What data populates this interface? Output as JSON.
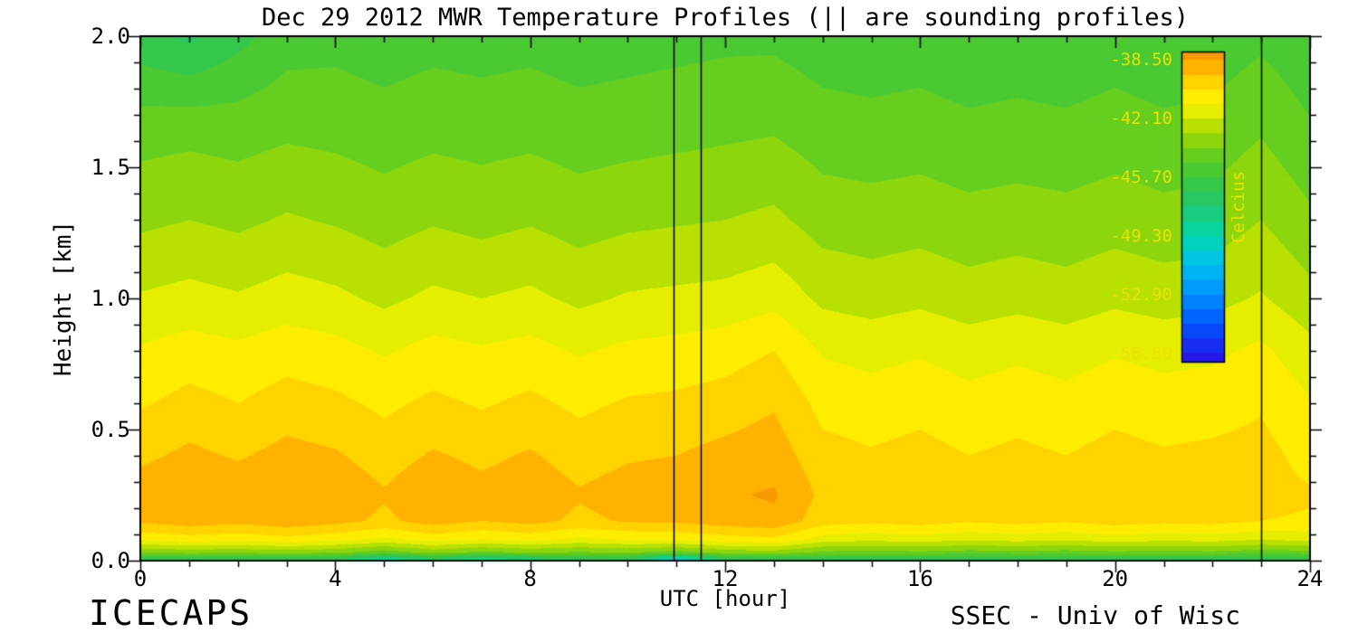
{
  "chart_data": {
    "type": "heatmap",
    "title": "Dec 29 2012 MWR Temperature Profiles (|| are sounding profiles)",
    "xlabel": "UTC [hour]",
    "ylabel": "Height [km]",
    "footer_left": "ICECAPS",
    "footer_right": "SSEC - Univ of Wisc",
    "xlim": [
      0,
      24
    ],
    "ylim": [
      0.0,
      2.0
    ],
    "x_ticks_major": [
      0,
      4,
      8,
      12,
      16,
      20,
      24
    ],
    "x_tick_labels": [
      "0",
      "4",
      "8",
      "12",
      "16",
      "20",
      "24"
    ],
    "x_minor_step": 1,
    "y_ticks_major": [
      0.0,
      0.5,
      1.0,
      1.5,
      2.0
    ],
    "y_tick_labels": [
      "0.0",
      "0.5",
      "1.0",
      "1.5",
      "2.0"
    ],
    "y_minor_step": 0.1,
    "sounding_profile_hours": [
      10.95,
      11.5,
      23.0
    ],
    "x_hours": [
      0,
      1,
      2,
      3,
      4,
      5,
      6,
      7,
      8,
      9,
      10,
      11,
      12,
      13,
      14,
      15,
      16,
      17,
      18,
      19,
      20,
      21,
      22,
      23,
      24
    ],
    "heights_km": [
      0.0,
      0.03,
      0.08,
      0.15,
      0.25,
      0.4,
      0.6,
      0.8,
      1.0,
      1.3,
      1.65,
      2.0
    ],
    "temperature_c": [
      [
        -47.0,
        -47.2,
        -47.1,
        -47.3,
        -47.4,
        -49.6,
        -47.8,
        -49.0,
        -48.2,
        -47.4,
        -47.2,
        -51.5,
        -47.6,
        -47.2,
        -47.0,
        -47.3,
        -47.1,
        -47.4,
        -47.2,
        -47.0,
        -47.3,
        -47.1,
        -47.4,
        -47.2,
        -47.1
      ],
      [
        -43.8,
        -43.6,
        -43.7,
        -43.5,
        -43.7,
        -44.4,
        -43.6,
        -44.1,
        -43.8,
        -44.0,
        -43.8,
        -44.3,
        -43.5,
        -43.4,
        -44.1,
        -44.2,
        -44.1,
        -44.3,
        -44.2,
        -44.3,
        -44.1,
        -44.2,
        -44.1,
        -44.4,
        -44.2
      ],
      [
        -41.0,
        -40.7,
        -40.9,
        -40.6,
        -40.9,
        -41.4,
        -40.8,
        -41.2,
        -40.9,
        -41.4,
        -41.1,
        -41.0,
        -40.7,
        -40.5,
        -41.6,
        -41.8,
        -41.6,
        -41.9,
        -41.7,
        -41.9,
        -41.6,
        -41.8,
        -41.7,
        -42.0,
        -41.8
      ],
      [
        -39.2,
        -38.9,
        -39.1,
        -38.8,
        -39.1,
        -39.6,
        -39.0,
        -39.4,
        -39.1,
        -39.6,
        -39.3,
        -39.2,
        -38.9,
        -38.7,
        -39.9,
        -40.1,
        -39.9,
        -40.2,
        -40.0,
        -40.2,
        -39.9,
        -40.1,
        -40.0,
        -40.3,
        -40.4
      ],
      [
        -38.9,
        -38.6,
        -38.8,
        -38.5,
        -38.8,
        -39.3,
        -38.7,
        -39.1,
        -38.8,
        -39.3,
        -39.0,
        -38.9,
        -38.6,
        -38.4,
        -39.6,
        -39.8,
        -39.6,
        -39.9,
        -39.7,
        -39.9,
        -39.6,
        -39.8,
        -39.7,
        -40.0,
        -40.2
      ],
      [
        -39.6,
        -39.2,
        -39.5,
        -39.1,
        -39.3,
        -39.8,
        -39.3,
        -39.6,
        -39.3,
        -39.8,
        -39.5,
        -39.4,
        -39.1,
        -38.9,
        -40.0,
        -40.2,
        -40.0,
        -40.3,
        -40.1,
        -40.3,
        -40.0,
        -40.2,
        -40.1,
        -40.0,
        -40.6
      ],
      [
        -40.4,
        -40.0,
        -40.3,
        -39.9,
        -40.1,
        -40.5,
        -40.1,
        -40.4,
        -40.1,
        -40.5,
        -40.2,
        -40.1,
        -39.9,
        -39.5,
        -40.6,
        -40.8,
        -40.6,
        -40.9,
        -40.7,
        -40.9,
        -40.6,
        -40.8,
        -40.7,
        -40.4,
        -41.1
      ],
      [
        -41.1,
        -40.8,
        -41.0,
        -40.7,
        -40.9,
        -41.3,
        -40.9,
        -41.1,
        -40.9,
        -41.3,
        -41.0,
        -40.9,
        -40.7,
        -40.3,
        -41.3,
        -41.5,
        -41.3,
        -41.6,
        -41.4,
        -41.6,
        -41.3,
        -41.5,
        -41.4,
        -41.0,
        -41.8
      ],
      [
        -42.0,
        -41.8,
        -42.0,
        -41.7,
        -41.9,
        -42.3,
        -41.9,
        -42.1,
        -41.9,
        -42.3,
        -42.0,
        -41.9,
        -41.8,
        -41.5,
        -42.3,
        -42.5,
        -42.3,
        -42.6,
        -42.4,
        -42.6,
        -42.3,
        -42.5,
        -42.4,
        -42.0,
        -42.7
      ],
      [
        -43.2,
        -43.0,
        -43.2,
        -42.9,
        -43.1,
        -43.4,
        -43.1,
        -43.3,
        -43.1,
        -43.4,
        -43.2,
        -43.1,
        -43.0,
        -42.8,
        -43.4,
        -43.5,
        -43.4,
        -43.6,
        -43.5,
        -43.6,
        -43.4,
        -43.6,
        -43.5,
        -43.0,
        -43.7
      ],
      [
        -44.3,
        -44.2,
        -44.3,
        -44.1,
        -44.2,
        -44.4,
        -44.2,
        -44.3,
        -44.2,
        -44.4,
        -44.3,
        -44.2,
        -44.1,
        -44.0,
        -44.4,
        -44.5,
        -44.4,
        -44.6,
        -44.5,
        -44.6,
        -44.4,
        -44.6,
        -44.5,
        -44.0,
        -44.7
      ],
      [
        -46.3,
        -46.8,
        -46.0,
        -45.2,
        -45.1,
        -45.3,
        -45.1,
        -45.2,
        -45.1,
        -45.3,
        -45.2,
        -45.1,
        -45.0,
        -45.0,
        -45.3,
        -45.4,
        -45.3,
        -45.5,
        -45.4,
        -45.5,
        -45.3,
        -45.5,
        -45.4,
        -45.0,
        -45.5
      ]
    ],
    "value_min": -58.3,
    "value_max": -36.7,
    "band_step": 0.9,
    "colormap_stops": [
      [
        -58.3,
        "#3A00D2"
      ],
      [
        -56.5,
        "#2020F0"
      ],
      [
        -54.7,
        "#0055FF"
      ],
      [
        -52.9,
        "#0090FF"
      ],
      [
        -51.1,
        "#00C0F0"
      ],
      [
        -49.3,
        "#00D8B0"
      ],
      [
        -47.5,
        "#20C870"
      ],
      [
        -45.7,
        "#3CC63C"
      ],
      [
        -44.3,
        "#66CE1E"
      ],
      [
        -42.8,
        "#AADC00"
      ],
      [
        -41.8,
        "#E0EC00"
      ],
      [
        -41.0,
        "#FFF400"
      ],
      [
        -40.0,
        "#FFD800"
      ],
      [
        -39.0,
        "#FFB400"
      ],
      [
        -38.0,
        "#F89800"
      ],
      [
        -36.7,
        "#F08000"
      ]
    ],
    "colorbar": {
      "label": "Celcius",
      "tick_labels": [
        "-38.50",
        "-42.10",
        "-45.70",
        "-49.30",
        "-52.90",
        "-56.50"
      ],
      "tick_values": [
        -38.5,
        -42.1,
        -45.7,
        -49.3,
        -52.9,
        -56.5
      ],
      "top_value": -38.0,
      "bottom_value": -57.0,
      "label_color": "#E8E200"
    },
    "axis_color": "#000000",
    "background_color": "#FFFFFF"
  }
}
